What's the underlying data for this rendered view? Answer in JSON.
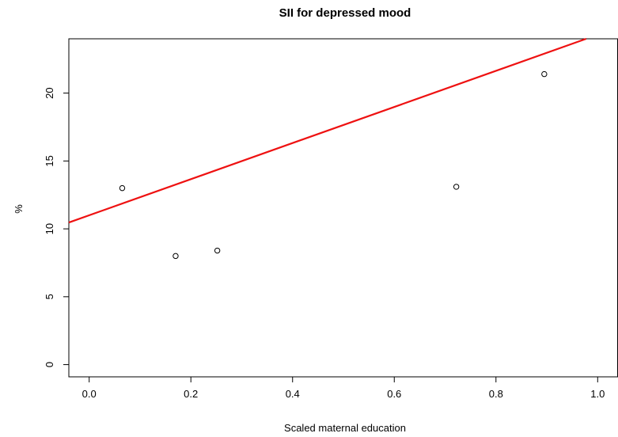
{
  "chart_data": {
    "type": "scatter",
    "title": "SII for depressed mood",
    "xlabel": "Scaled maternal education",
    "ylabel": "%",
    "xlim": [
      -0.04,
      1.04
    ],
    "ylim": [
      -0.9,
      24.0
    ],
    "x_ticks": [
      "0.0",
      "0.2",
      "0.4",
      "0.6",
      "0.8",
      "1.0"
    ],
    "y_ticks": [
      "0",
      "5",
      "10",
      "15",
      "20"
    ],
    "grid": false,
    "legend": "none",
    "points": [
      {
        "x": 0.065,
        "y": 13.0
      },
      {
        "x": 0.17,
        "y": 8.0
      },
      {
        "x": 0.252,
        "y": 8.4
      },
      {
        "x": 0.722,
        "y": 13.1
      },
      {
        "x": 0.895,
        "y": 21.4
      }
    ],
    "regression_line": {
      "intercept": 11.0,
      "slope": 13.3,
      "color": "#ee1111"
    }
  }
}
